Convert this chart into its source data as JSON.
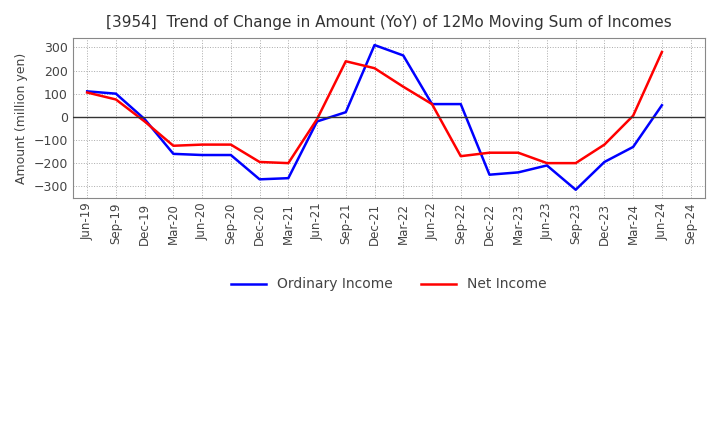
{
  "title": "[3954]  Trend of Change in Amount (YoY) of 12Mo Moving Sum of Incomes",
  "ylabel": "Amount (million yen)",
  "ylim": [
    -350,
    340
  ],
  "yticks": [
    -300,
    -200,
    -100,
    0,
    100,
    200,
    300
  ],
  "x_labels": [
    "Jun-19",
    "Sep-19",
    "Dec-19",
    "Mar-20",
    "Jun-20",
    "Sep-20",
    "Dec-20",
    "Mar-21",
    "Jun-21",
    "Sep-21",
    "Dec-21",
    "Mar-22",
    "Jun-22",
    "Sep-22",
    "Dec-22",
    "Mar-23",
    "Jun-23",
    "Sep-23",
    "Dec-23",
    "Mar-24",
    "Jun-24",
    "Sep-24"
  ],
  "ordinary_income": [
    110,
    100,
    -10,
    -160,
    -165,
    -165,
    -270,
    -265,
    -20,
    20,
    310,
    265,
    55,
    55,
    -250,
    -240,
    -210,
    -315,
    -195,
    -130,
    50,
    null
  ],
  "net_income": [
    105,
    75,
    -20,
    -125,
    -120,
    -120,
    -195,
    -200,
    -10,
    240,
    210,
    130,
    55,
    -170,
    -155,
    -155,
    -200,
    -200,
    -120,
    5,
    280,
    null
  ],
  "ordinary_color": "#0000ff",
  "net_color": "#ff0000",
  "background_color": "#ffffff",
  "grid_color": "#aaaaaa",
  "legend_labels": [
    "Ordinary Income",
    "Net Income"
  ]
}
